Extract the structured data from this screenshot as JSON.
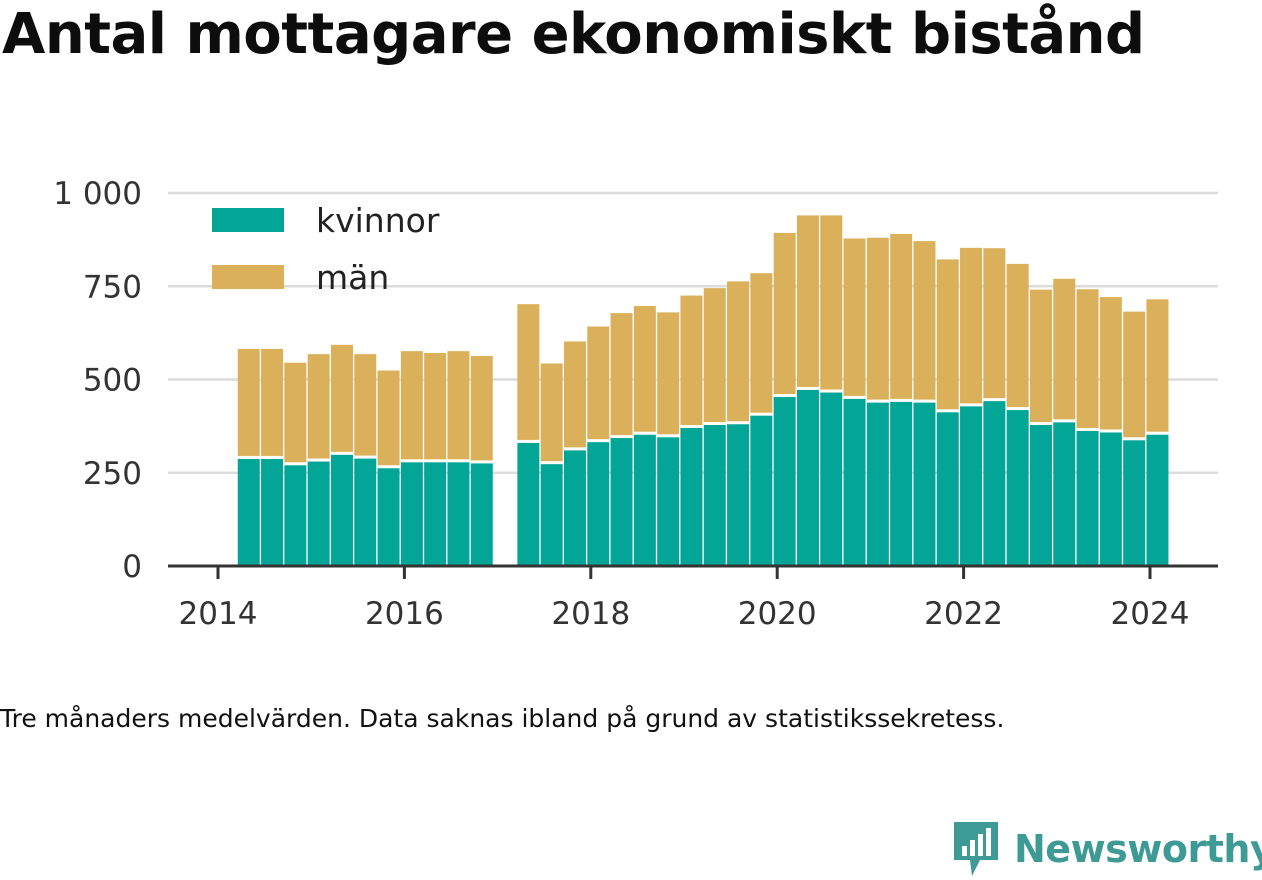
{
  "title": "Antal mottagare ekonomiskt bistånd",
  "note": "Tre månaders medelvärden. Data saknas ibland på grund av statistikssekretess.",
  "brand": {
    "name": "Newsworthy",
    "logo_icon": "bar-chart-speech-bubble-icon",
    "color": "#3e9a94"
  },
  "chart_data": {
    "type": "bar",
    "stacked": true,
    "x_axis": {
      "ticks": [
        2014,
        2016,
        2018,
        2020,
        2022,
        2024
      ],
      "range": [
        2013.5,
        2024.7
      ]
    },
    "y_axis": {
      "ticks": [
        0,
        250,
        500,
        750,
        1000
      ],
      "tick_labels": [
        "0",
        "250",
        "500",
        "750",
        "1 000"
      ],
      "range": [
        0,
        1000
      ]
    },
    "grid": true,
    "legend_position": "top-left",
    "x": [
      2014.33,
      2014.58,
      2014.83,
      2015.08,
      2015.33,
      2015.58,
      2015.83,
      2016.08,
      2016.33,
      2016.58,
      2016.83,
      2017.33,
      2017.58,
      2017.83,
      2018.08,
      2018.33,
      2018.58,
      2018.83,
      2019.08,
      2019.33,
      2019.58,
      2019.83,
      2020.08,
      2020.33,
      2020.58,
      2020.83,
      2021.08,
      2021.33,
      2021.58,
      2021.83,
      2022.08,
      2022.33,
      2022.58,
      2022.83,
      2023.08,
      2023.33,
      2023.58,
      2023.83,
      2024.08
    ],
    "series": [
      {
        "name": "kvinnor",
        "color": "#03a597",
        "values": [
          287,
          287,
          270,
          280,
          298,
          288,
          262,
          278,
          278,
          278,
          275,
          330,
          273,
          310,
          332,
          343,
          352,
          345,
          370,
          378,
          380,
          403,
          453,
          472,
          465,
          448,
          438,
          440,
          438,
          412,
          428,
          442,
          418,
          378,
          385,
          362,
          358,
          337,
          352
        ]
      },
      {
        "name": "män",
        "color": "#dbb05a",
        "values": [
          295,
          295,
          275,
          288,
          295,
          280,
          262,
          298,
          293,
          298,
          288,
          372,
          270,
          292,
          310,
          335,
          345,
          335,
          355,
          367,
          383,
          382,
          440,
          468,
          475,
          430,
          442,
          450,
          433,
          410,
          425,
          410,
          392,
          363,
          385,
          380,
          363,
          345,
          363
        ]
      }
    ]
  }
}
